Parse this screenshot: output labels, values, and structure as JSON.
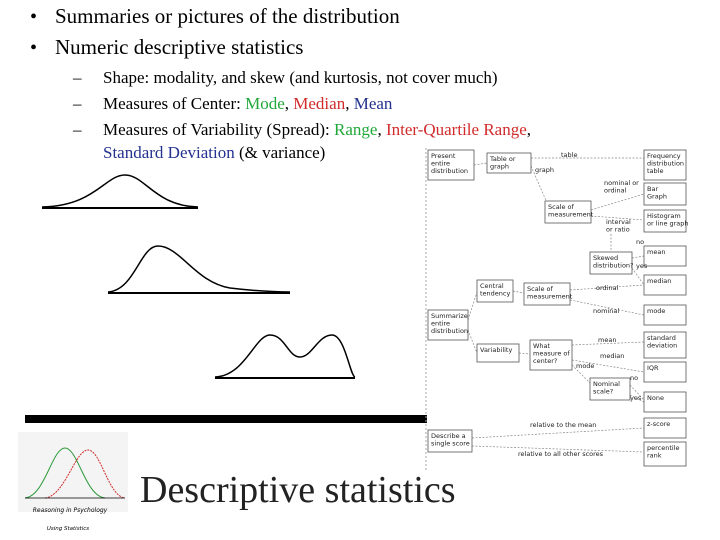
{
  "bullets": [
    "Summaries or pictures of the distribution",
    "Numeric descriptive statistics"
  ],
  "sub_bullets": [
    {
      "lines": [
        [
          {
            "text": "Shape: modality, and skew (and kurtosis, not cover much)"
          }
        ]
      ]
    },
    {
      "lines": [
        [
          {
            "text": "Measures of Center: "
          },
          {
            "text": "Mode",
            "color": "#22a83a"
          },
          {
            "text": ", "
          },
          {
            "text": "Median",
            "color": "#d12b2b"
          },
          {
            "text": ", "
          },
          {
            "text": "Mean",
            "color": "#23318f"
          }
        ]
      ]
    },
    {
      "lines": [
        [
          {
            "text": "Measures of Variability (Spread): "
          },
          {
            "text": "Range",
            "color": "#22a83a"
          },
          {
            "text": ", "
          },
          {
            "text": "Inter-Quartile Range",
            "color": "#d12b2b"
          },
          {
            "text": ","
          }
        ],
        [
          {
            "text": "Standard Deviation",
            "color": "#23318f"
          },
          {
            "text": " (& variance)"
          }
        ]
      ]
    }
  ],
  "flowchart": {
    "nodes": [
      {
        "lines": [
          "Present",
          "entire",
          "distribution"
        ]
      },
      {
        "lines": [
          "Table or",
          "graph"
        ]
      },
      {
        "lines": [
          "Frequency",
          "distribution",
          "table"
        ]
      },
      {
        "lines": [
          "Bar",
          "Graph"
        ]
      },
      {
        "lines": [
          "Scale of",
          "measurement"
        ]
      },
      {
        "lines": [
          "Histogram",
          "or line graph"
        ]
      },
      {
        "lines": [
          "Skewed",
          "distribution?"
        ]
      },
      {
        "lines": [
          "mean"
        ]
      },
      {
        "lines": [
          "Central",
          "tendency"
        ]
      },
      {
        "lines": [
          "Scale of",
          "measurement"
        ]
      },
      {
        "lines": [
          "median"
        ]
      },
      {
        "lines": [
          "Summarize",
          "entire",
          "distribution"
        ]
      },
      {
        "lines": [
          "mode"
        ]
      },
      {
        "lines": [
          "Variability"
        ]
      },
      {
        "lines": [
          "What",
          "measure of",
          "center?"
        ]
      },
      {
        "lines": [
          "standard",
          "deviation"
        ]
      },
      {
        "lines": [
          "IQR"
        ]
      },
      {
        "lines": [
          "Nominal",
          "scale?"
        ]
      },
      {
        "lines": [
          "None"
        ]
      },
      {
        "lines": [
          "z-score"
        ]
      },
      {
        "lines": [
          "Describe a",
          "single score"
        ]
      },
      {
        "lines": [
          "percentile",
          "rank"
        ]
      }
    ],
    "edge_labels": [
      {
        "lines": [
          "table"
        ]
      },
      {
        "lines": [
          "graph"
        ]
      },
      {
        "lines": [
          "nominal or",
          "ordinal"
        ]
      },
      {
        "lines": [
          "interval",
          "or ratio"
        ]
      },
      {
        "lines": [
          "no"
        ]
      },
      {
        "lines": [
          "yes"
        ]
      },
      {
        "lines": [
          "ordinal"
        ]
      },
      {
        "lines": [
          "nominal"
        ]
      },
      {
        "lines": [
          "mean"
        ]
      },
      {
        "lines": [
          "median"
        ]
      },
      {
        "lines": [
          "mode"
        ]
      },
      {
        "lines": [
          "no"
        ]
      },
      {
        "lines": [
          "yes"
        ]
      },
      {
        "lines": [
          "relative to the mean"
        ]
      },
      {
        "lines": [
          "relative to all other scores"
        ]
      }
    ]
  },
  "title": "Descriptive statistics",
  "logo": {
    "line1": "Reasoning in Psychology",
    "line2": "Using Statistics"
  }
}
